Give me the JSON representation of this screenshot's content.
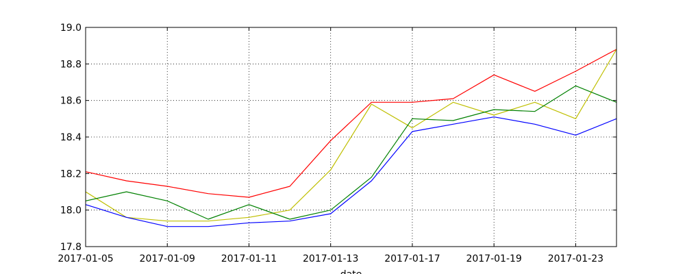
{
  "chart_data": {
    "type": "line",
    "title": "",
    "xlabel": "date",
    "ylabel": "",
    "ylim": [
      17.8,
      19.0
    ],
    "yticks": [
      "17.8",
      "18.0",
      "18.2",
      "18.4",
      "18.6",
      "18.8",
      "19.0"
    ],
    "xtick_labels": [
      "2017-01-05",
      "2017-01-09",
      "2017-01-11",
      "2017-01-13",
      "2017-01-17",
      "2017-01-19",
      "2017-01-23"
    ],
    "grid": true,
    "legend": "none",
    "x": [
      "2017-01-05",
      "2017-01-06",
      "2017-01-09",
      "2017-01-10",
      "2017-01-11",
      "2017-01-12",
      "2017-01-13",
      "2017-01-16",
      "2017-01-17",
      "2017-01-18",
      "2017-01-19",
      "2017-01-20",
      "2017-01-23",
      "2017-01-24"
    ],
    "series": [
      {
        "color": "#ff0000",
        "values": [
          18.21,
          18.16,
          18.13,
          18.09,
          18.07,
          18.13,
          18.38,
          18.59,
          18.59,
          18.61,
          18.74,
          18.65,
          18.76,
          18.88
        ]
      },
      {
        "color": "#bfbf00",
        "values": [
          18.1,
          17.96,
          17.94,
          17.94,
          17.96,
          18.0,
          18.22,
          18.58,
          18.45,
          18.59,
          18.52,
          18.59,
          18.5,
          18.88
        ]
      },
      {
        "color": "#008000",
        "values": [
          18.05,
          18.1,
          18.05,
          17.95,
          18.03,
          17.95,
          18.0,
          18.18,
          18.5,
          18.49,
          18.55,
          18.54,
          18.68,
          18.59
        ]
      },
      {
        "color": "#0000ff",
        "values": [
          18.03,
          17.96,
          17.91,
          17.91,
          17.93,
          17.94,
          17.98,
          18.16,
          18.43,
          18.47,
          18.51,
          18.47,
          18.41,
          18.5
        ]
      }
    ]
  }
}
